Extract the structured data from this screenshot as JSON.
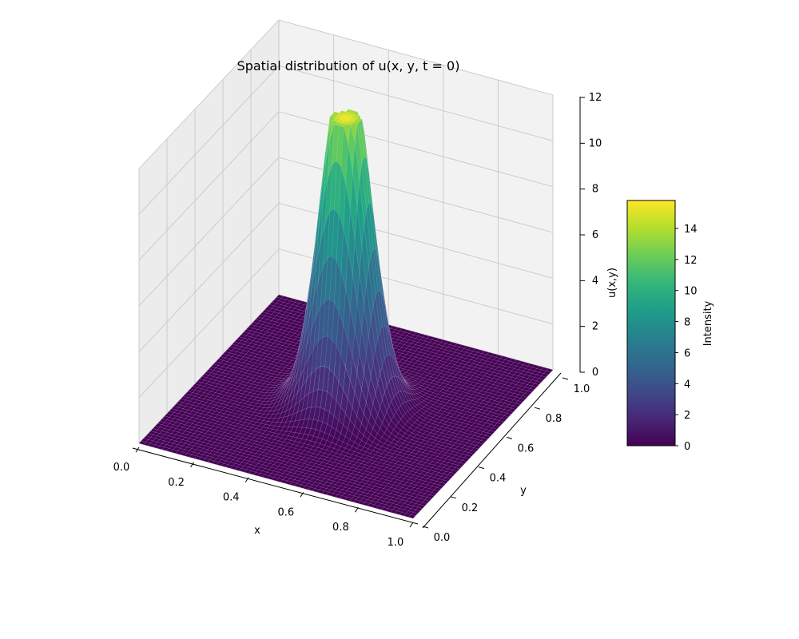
{
  "chart_data": {
    "type": "surface3d",
    "title": "Spatial distribution of u(x, y, t = 0)",
    "xlabel": "x",
    "ylabel": "y",
    "zlabel": "u(x,y)",
    "xlim": [
      0,
      1
    ],
    "ylim": [
      0,
      1
    ],
    "zlim": [
      0,
      12
    ],
    "x_ticks": [
      "0.0",
      "0.2",
      "0.4",
      "0.6",
      "0.8",
      "1.0"
    ],
    "y_ticks": [
      "0.0",
      "0.2",
      "0.4",
      "0.6",
      "0.8",
      "1.0"
    ],
    "z_ticks": [
      "0",
      "2",
      "4",
      "6",
      "8",
      "10",
      "12"
    ],
    "grid": true,
    "colormap": "viridis",
    "surface": {
      "function": "gaussian",
      "amplitude": 15.8,
      "center": [
        0.5,
        0.5
      ],
      "sigma": 0.08
    },
    "colorbar": {
      "label": "Intensity",
      "ticks": [
        "0",
        "2",
        "4",
        "6",
        "8",
        "10",
        "12",
        "14"
      ],
      "range": [
        0,
        15.8
      ],
      "placement": "right"
    }
  }
}
